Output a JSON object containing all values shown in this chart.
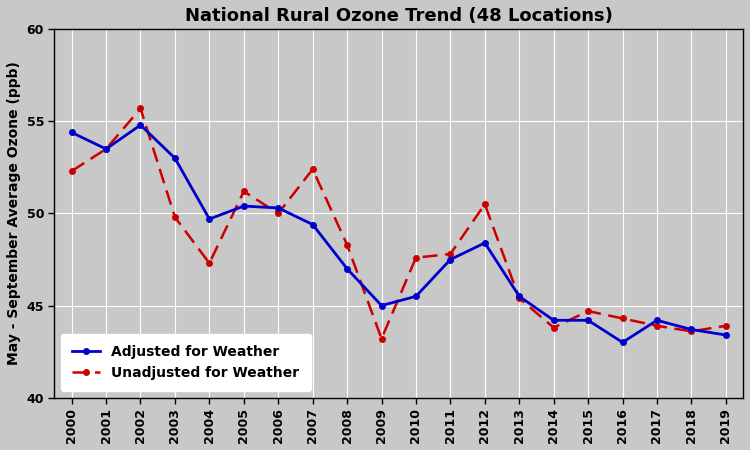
{
  "title": "National Rural Ozone Trend (48 Locations)",
  "xlabel": "",
  "ylabel": "May - September Average Ozone (ppb)",
  "years": [
    2000,
    2001,
    2002,
    2003,
    2004,
    2005,
    2006,
    2007,
    2008,
    2009,
    2010,
    2011,
    2012,
    2013,
    2014,
    2015,
    2016,
    2017,
    2018,
    2019
  ],
  "adjusted": [
    54.4,
    53.5,
    54.8,
    53.0,
    49.7,
    50.4,
    50.3,
    49.4,
    47.0,
    45.0,
    45.5,
    47.5,
    48.4,
    45.5,
    44.2,
    44.2,
    43.0,
    44.2,
    43.7,
    43.4
  ],
  "unadjusted": [
    52.3,
    53.5,
    55.7,
    49.8,
    47.3,
    51.2,
    50.0,
    52.4,
    48.3,
    43.2,
    47.6,
    47.8,
    50.5,
    45.4,
    43.8,
    44.7,
    44.3,
    43.9,
    43.6,
    43.9
  ],
  "adjusted_color": "#0000CC",
  "unadjusted_color": "#CC0000",
  "bg_color": "#C8C8C8",
  "plot_bg_color": "#C8C8C8",
  "grid_color": "#FFFFFF",
  "ylim": [
    40,
    60
  ],
  "yticks": [
    40,
    45,
    50,
    55,
    60
  ],
  "title_fontsize": 13,
  "label_fontsize": 10,
  "tick_fontsize": 9,
  "legend_fontsize": 10
}
